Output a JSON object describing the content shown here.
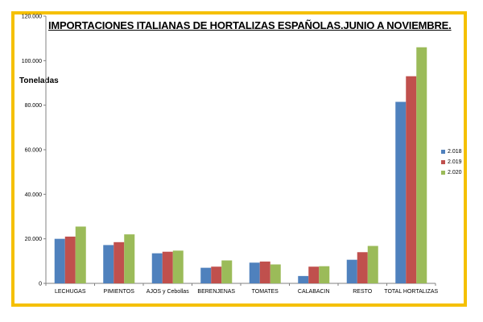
{
  "chart_data": {
    "type": "bar",
    "title": "IMPORTACIONES  ITALIANAS DE HORTALIZAS ESPAÑOLAS.JUNIO A NOVIEMBRE.",
    "ylabel": "Toneladas",
    "xlabel": "",
    "ylim": [
      0,
      120000
    ],
    "yticks": [
      "0",
      "20.000",
      "40.000",
      "60.000",
      "80.000",
      "100.000",
      "120.000"
    ],
    "ytick_values": [
      0,
      20000,
      40000,
      60000,
      80000,
      100000,
      120000
    ],
    "categories": [
      "LECHUGAS",
      "PIMIENTOS",
      "AJOS y Cebollas",
      "BERENJENAS",
      "TOMATES",
      "CALABACIN",
      "RESTO",
      "TOTAL HORTALIZAS"
    ],
    "series": [
      {
        "name": "2.018",
        "color": "#4f81bd",
        "values": [
          20000,
          17200,
          13500,
          7000,
          9300,
          3300,
          10600,
          81500
        ]
      },
      {
        "name": "2.019",
        "color": "#c0504d",
        "values": [
          21000,
          18500,
          14200,
          7500,
          9800,
          7500,
          14000,
          93000
        ]
      },
      {
        "name": "2.020",
        "color": "#9bbb59",
        "values": [
          25500,
          22000,
          14700,
          10300,
          8500,
          7700,
          16800,
          106000
        ]
      }
    ],
    "grid": false,
    "legend": "right"
  },
  "frame_color": "#f5c000"
}
